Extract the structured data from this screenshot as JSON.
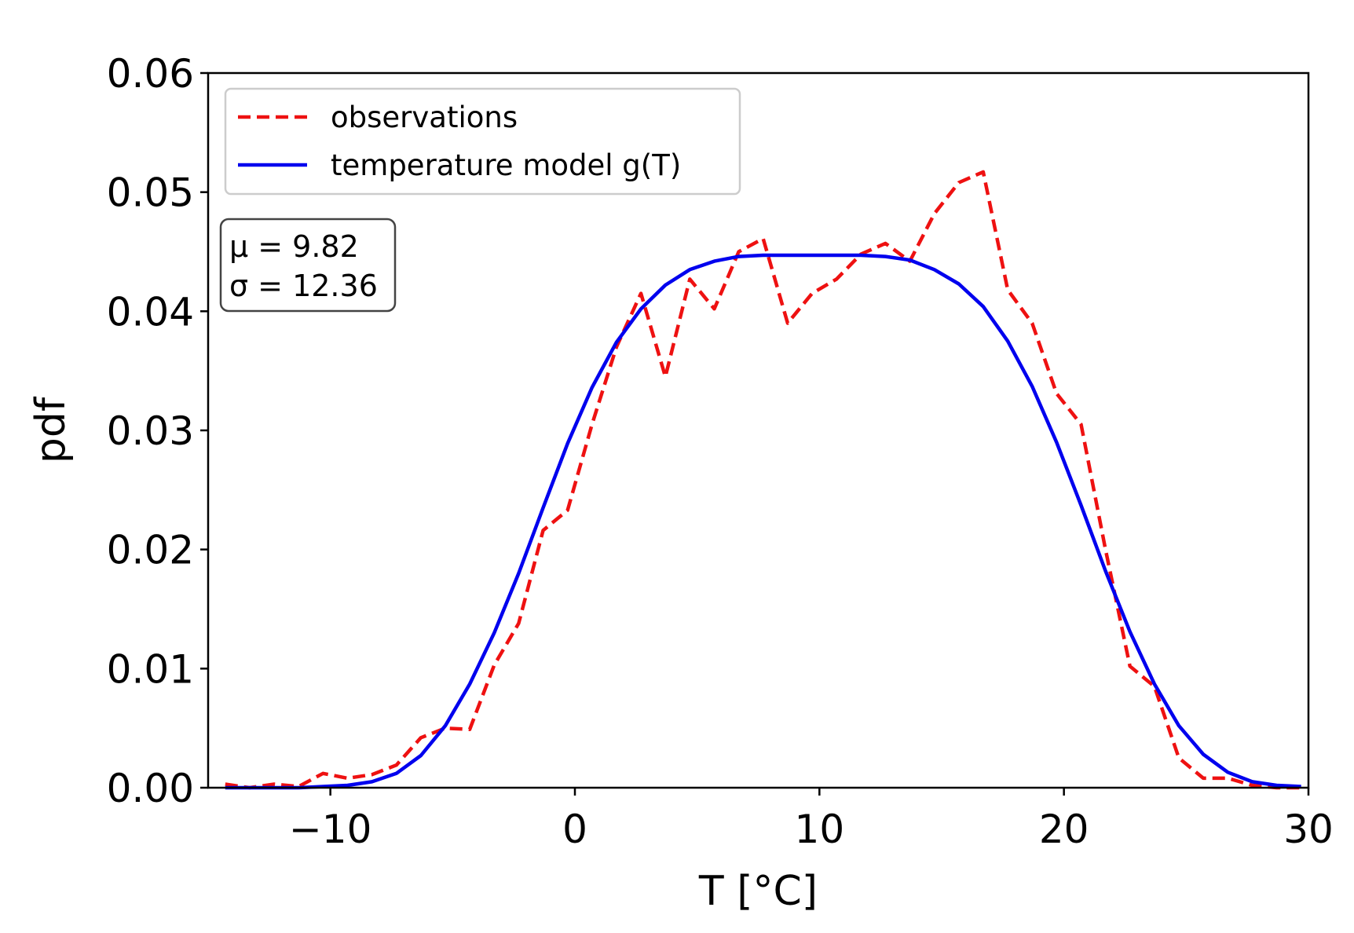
{
  "chart_data": {
    "type": "line",
    "title": "",
    "xlabel": "T [°C]",
    "ylabel": "pdf",
    "xlim": [
      -15,
      30
    ],
    "ylim": [
      0,
      0.06
    ],
    "xticks": [
      -10,
      0,
      10,
      20,
      30
    ],
    "xtick_labels": [
      "−10",
      "0",
      "10",
      "20",
      "30"
    ],
    "yticks": [
      0,
      0.01,
      0.02,
      0.03,
      0.04,
      0.05,
      0.06
    ],
    "ytick_labels": [
      "0.00",
      "0.01",
      "0.02",
      "0.03",
      "0.04",
      "0.05",
      "0.06"
    ],
    "grid": false,
    "legend_position": "upper-left",
    "series": [
      {
        "name": "observations",
        "color": "#ee1111",
        "style": "dashed",
        "x": [
          -14.3,
          -13.3,
          -12.3,
          -11.3,
          -10.3,
          -9.3,
          -8.3,
          -7.3,
          -6.3,
          -5.3,
          -4.3,
          -3.3,
          -2.3,
          -1.3,
          -0.3,
          0.7,
          1.7,
          2.7,
          3.7,
          4.7,
          5.7,
          6.7,
          7.7,
          8.7,
          9.7,
          10.7,
          11.7,
          12.7,
          13.7,
          14.7,
          15.7,
          16.7,
          17.7,
          18.7,
          19.7,
          20.7,
          21.7,
          22.7,
          23.7,
          24.7,
          25.7,
          26.7,
          27.7,
          28.7,
          29.7
        ],
        "y": [
          0.0003,
          0.0,
          0.0003,
          0.0001,
          0.0012,
          0.0008,
          0.0011,
          0.0019,
          0.0042,
          0.005,
          0.0049,
          0.0103,
          0.0138,
          0.0216,
          0.0233,
          0.0305,
          0.037,
          0.0415,
          0.0345,
          0.0427,
          0.0402,
          0.045,
          0.0461,
          0.039,
          0.0415,
          0.0427,
          0.0448,
          0.0457,
          0.0442,
          0.0482,
          0.0508,
          0.0517,
          0.0418,
          0.039,
          0.0331,
          0.0305,
          0.02,
          0.0102,
          0.0085,
          0.0025,
          0.0008,
          0.0008,
          0.0002,
          0.0,
          0.0
        ]
      },
      {
        "name": "temperature model g(T)",
        "color": "#0000ee",
        "style": "solid",
        "x": [
          -14.3,
          -13.3,
          -12.3,
          -11.3,
          -10.3,
          -9.3,
          -8.3,
          -7.3,
          -6.3,
          -5.3,
          -4.3,
          -3.3,
          -2.3,
          -1.3,
          -0.3,
          0.7,
          1.7,
          2.7,
          3.7,
          4.7,
          5.7,
          6.7,
          7.7,
          8.7,
          9.7,
          10.7,
          11.7,
          12.7,
          13.7,
          14.7,
          15.7,
          16.7,
          17.7,
          18.7,
          19.7,
          20.7,
          21.7,
          22.7,
          23.7,
          24.7,
          25.7,
          26.7,
          27.7,
          28.7,
          29.7
        ],
        "y": [
          0.0,
          0.0,
          0.0,
          0.0,
          0.0001,
          0.0002,
          0.0005,
          0.0012,
          0.0027,
          0.0052,
          0.0087,
          0.013,
          0.018,
          0.0235,
          0.0289,
          0.0336,
          0.0374,
          0.0402,
          0.0422,
          0.0435,
          0.0442,
          0.0446,
          0.0447,
          0.0447,
          0.0447,
          0.0447,
          0.0447,
          0.0446,
          0.0443,
          0.0435,
          0.0423,
          0.0404,
          0.0375,
          0.0337,
          0.029,
          0.0237,
          0.0182,
          0.0131,
          0.0087,
          0.0052,
          0.0028,
          0.0013,
          0.0005,
          0.0002,
          0.0001
        ]
      }
    ],
    "stats_box": {
      "mu_line": "μ = 9.82",
      "sigma_line": "σ = 12.36"
    }
  }
}
